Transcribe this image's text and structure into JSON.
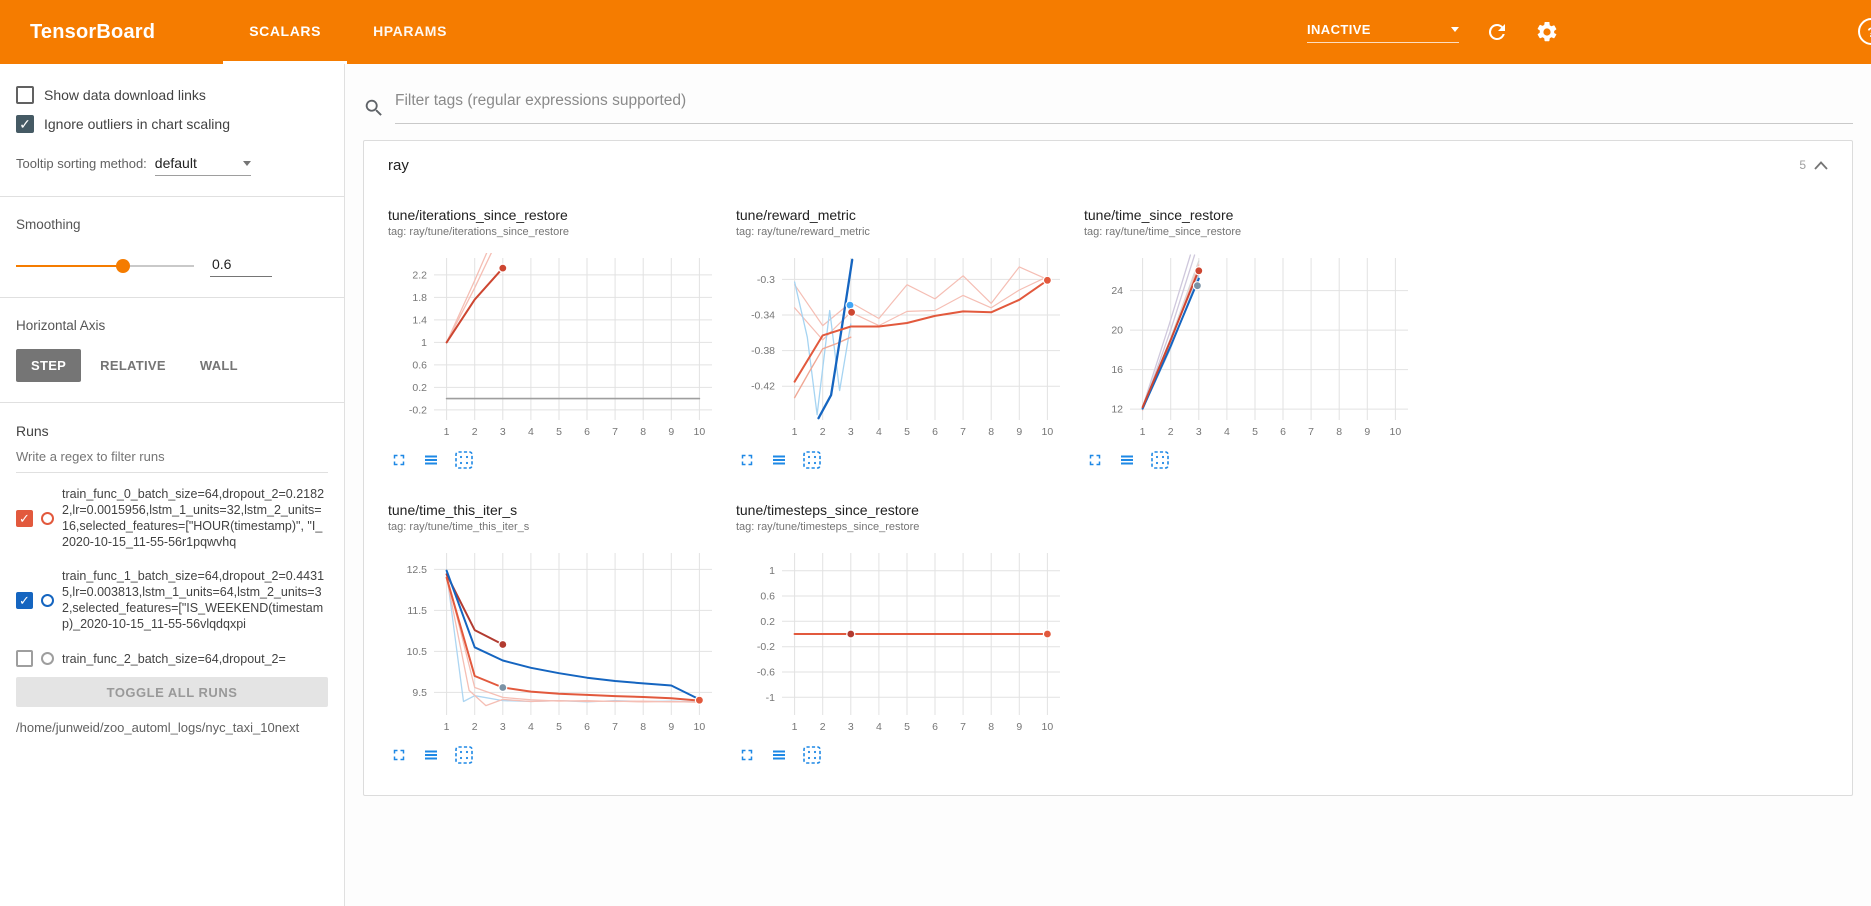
{
  "colors": {
    "header_bg": "#f57c00",
    "accent": "#f57c00",
    "icon_blue": "#1e88e5",
    "checkbox_checked_dark": "#455a64",
    "run_orange": "#e2593d",
    "run_blue": "#1565c0"
  },
  "header": {
    "title": "TensorBoard",
    "tabs": [
      {
        "label": "SCALARS",
        "active": true
      },
      {
        "label": "HPARAMS",
        "active": false
      }
    ],
    "status_select": {
      "value": "INACTIVE"
    }
  },
  "sidebar": {
    "show_download": {
      "label": "Show data download links",
      "checked": false
    },
    "ignore_outliers": {
      "label": "Ignore outliers in chart scaling",
      "checked": true
    },
    "tooltip_sort": {
      "label": "Tooltip sorting method:",
      "value": "default"
    },
    "smoothing": {
      "label": "Smoothing",
      "value": "0.6",
      "percent": 60
    },
    "horizontal_axis": {
      "label": "Horizontal Axis",
      "options": [
        "STEP",
        "RELATIVE",
        "WALL"
      ],
      "selected": "STEP"
    },
    "runs": {
      "label": "Runs",
      "filter_placeholder": "Write a regex to filter runs",
      "items": [
        {
          "label": "train_func_0_batch_size=64,dropout_2=0.21822,lr=0.0015956,lstm_1_units=32,lstm_2_units=16,selected_features=[\"HOUR(timestamp)\", \"I_2020-10-15_11-55-56r1pqwvhq",
          "checked": true,
          "color": "#e2593d"
        },
        {
          "label": "train_func_1_batch_size=64,dropout_2=0.44315,lr=0.003813,lstm_1_units=64,lstm_2_units=32,selected_features=[\"IS_WEEKEND(timestamp)_2020-10-15_11-55-56vlqdqxpi",
          "checked": true,
          "color": "#1565c0"
        },
        {
          "label": "train_func_2_batch_size=64,dropout_2=",
          "checked": false,
          "color": "#9e9e9e"
        }
      ],
      "toggle_all_label": "TOGGLE ALL RUNS",
      "log_path": "/home/junweid/zoo_automl_logs/nyc_taxi_10next"
    }
  },
  "main": {
    "filter_placeholder": "Filter tags (regular expressions supported)",
    "group": {
      "name": "ray",
      "count": "5"
    }
  },
  "chart_data": [
    {
      "name": "iterations_since_restore",
      "type": "line",
      "title": "tune/iterations_since_restore",
      "tag": "tag: ray/tune/iterations_since_restore",
      "xlim": [
        0.55,
        10.45
      ],
      "ylim": [
        -0.38,
        2.5
      ],
      "xticks": [
        1,
        2,
        3,
        4,
        5,
        6,
        7,
        8,
        9,
        10
      ],
      "yticks": [
        [
          -0.2,
          "-0.2"
        ],
        [
          0.2,
          "0.2"
        ],
        [
          0.6,
          "0.6"
        ],
        [
          1,
          "1"
        ],
        [
          1.4,
          "1.4"
        ],
        [
          1.8,
          "1.8"
        ],
        [
          2.2,
          "2.2"
        ]
      ],
      "series": [
        {
          "name": "run0-raw",
          "color": "#f5beb4",
          "width": 1.3,
          "points": [
            [
              1,
              1
            ],
            [
              2,
              2.1
            ],
            [
              2.45,
              2.62
            ]
          ]
        },
        {
          "name": "run2-raw",
          "color": "#f5beb4",
          "width": 1.3,
          "points": [
            [
              1,
              1
            ],
            [
              2,
              1.97
            ],
            [
              2.62,
              2.62
            ]
          ]
        },
        {
          "name": "flat-zero-run",
          "color": "#9e9e9e",
          "width": 1.6,
          "points": [
            [
              1,
              0
            ],
            [
              10,
              0
            ]
          ]
        },
        {
          "name": "run0-smoothed",
          "color": "#cd4631",
          "width": 2,
          "points": [
            [
              1,
              1
            ],
            [
              2,
              1.76
            ],
            [
              3,
              2.32
            ]
          ]
        }
      ],
      "end_dots": [
        {
          "x": 3,
          "y": 2.32,
          "color": "#cd4631"
        }
      ]
    },
    {
      "name": "reward_metric",
      "type": "line",
      "title": "tune/reward_metric",
      "tag": "tag: ray/tune/reward_metric",
      "xlim": [
        0.55,
        10.45
      ],
      "ylim": [
        -0.458,
        -0.276
      ],
      "xticks": [
        1,
        2,
        3,
        4,
        5,
        6,
        7,
        8,
        9,
        10
      ],
      "yticks": [
        [
          -0.42,
          "-0.42"
        ],
        [
          -0.38,
          "-0.38"
        ],
        [
          -0.34,
          "-0.34"
        ],
        [
          -0.3,
          "-0.3"
        ]
      ],
      "series": [
        {
          "name": "faded-raw-a",
          "color": "#f5beb4",
          "width": 1.2,
          "points": [
            [
              1,
              -0.306
            ],
            [
              2,
              -0.352
            ],
            [
              3,
              -0.326
            ],
            [
              4,
              -0.344
            ],
            [
              5,
              -0.306
            ],
            [
              6,
              -0.322
            ],
            [
              7,
              -0.296
            ],
            [
              8,
              -0.327
            ],
            [
              9,
              -0.286
            ],
            [
              10,
              -0.3
            ]
          ]
        },
        {
          "name": "faded-raw-b",
          "color": "#f5beb4",
          "width": 1.2,
          "points": [
            [
              1,
              -0.332
            ],
            [
              2,
              -0.368
            ],
            [
              3,
              -0.337
            ],
            [
              4,
              -0.352
            ],
            [
              5,
              -0.336
            ],
            [
              6,
              -0.335
            ],
            [
              7,
              -0.318
            ],
            [
              8,
              -0.332
            ],
            [
              9,
              -0.312
            ],
            [
              10,
              -0.297
            ]
          ]
        },
        {
          "name": "blue-raw",
          "color": "#a6d4f2",
          "width": 1.3,
          "points": [
            [
              1,
              -0.303
            ],
            [
              1.45,
              -0.365
            ],
            [
              1.8,
              -0.452
            ],
            [
              2.25,
              -0.335
            ],
            [
              2.6,
              -0.425
            ],
            [
              3,
              -0.35
            ]
          ]
        },
        {
          "name": "orange-raw",
          "color": "#f0a794",
          "width": 1.4,
          "points": [
            [
              1,
              -0.433
            ],
            [
              1.5,
              -0.405
            ],
            [
              2,
              -0.378
            ],
            [
              2.5,
              -0.372
            ],
            [
              3,
              -0.365
            ]
          ]
        },
        {
          "name": "blue-smoothed",
          "color": "#1565c0",
          "width": 2.3,
          "points": [
            [
              1.85,
              -0.456
            ],
            [
              2.3,
              -0.43
            ],
            [
              2.65,
              -0.36
            ],
            [
              3.05,
              -0.278
            ]
          ]
        },
        {
          "name": "orange-smoothed",
          "color": "#e2593d",
          "width": 2,
          "points": [
            [
              1,
              -0.415
            ],
            [
              2,
              -0.363
            ],
            [
              3,
              -0.353
            ],
            [
              4,
              -0.353
            ],
            [
              5,
              -0.349
            ],
            [
              6,
              -0.341
            ],
            [
              7,
              -0.336
            ],
            [
              8,
              -0.337
            ],
            [
              9,
              -0.323
            ],
            [
              10,
              -0.301
            ]
          ]
        }
      ],
      "end_dots": [
        {
          "x": 2.97,
          "y": -0.329,
          "color": "#42a5f5"
        },
        {
          "x": 3.03,
          "y": -0.337,
          "color": "#cd4631"
        },
        {
          "x": 10,
          "y": -0.301,
          "color": "#e2593d"
        }
      ]
    },
    {
      "name": "time_since_restore",
      "type": "line",
      "title": "tune/time_since_restore",
      "tag": "tag: ray/tune/time_since_restore",
      "xlim": [
        0.55,
        10.45
      ],
      "ylim": [
        10.9,
        27.3
      ],
      "xticks": [
        1,
        2,
        3,
        4,
        5,
        6,
        7,
        8,
        9,
        10
      ],
      "yticks": [
        [
          12,
          "12"
        ],
        [
          16,
          "16"
        ],
        [
          20,
          "20"
        ],
        [
          24,
          "24"
        ]
      ],
      "series": [
        {
          "name": "faded-lavender-a",
          "color": "#cfc8dc",
          "width": 1.3,
          "points": [
            [
              1,
              12
            ],
            [
              2,
              20
            ],
            [
              2.85,
              27.6
            ]
          ]
        },
        {
          "name": "faded-lavender-b",
          "color": "#cfc8dc",
          "width": 1.3,
          "points": [
            [
              1,
              12.2
            ],
            [
              1.95,
              20.6
            ],
            [
              2.7,
              27.6
            ]
          ]
        },
        {
          "name": "faded-gray",
          "color": "#d8d8d8",
          "width": 1.3,
          "points": [
            [
              1,
              12.1
            ],
            [
              2,
              19.2
            ],
            [
              3,
              27
            ]
          ]
        },
        {
          "name": "faded-pink",
          "color": "#f5beb4",
          "width": 1.3,
          "points": [
            [
              1,
              11.9
            ],
            [
              2,
              18.9
            ],
            [
              3,
              26.6
            ]
          ]
        },
        {
          "name": "faded-blue",
          "color": "#aecbe8",
          "width": 1.4,
          "points": [
            [
              1,
              12
            ],
            [
              2,
              18.2
            ],
            [
              3,
              25.6
            ]
          ]
        },
        {
          "name": "blue-smoothed",
          "color": "#1565c0",
          "width": 2,
          "points": [
            [
              1,
              12.05
            ],
            [
              2,
              18.4
            ],
            [
              3,
              25.2
            ]
          ]
        },
        {
          "name": "red-smoothed",
          "color": "#cd4631",
          "width": 2,
          "points": [
            [
              1,
              12.2
            ],
            [
              2,
              19
            ],
            [
              3,
              26.1
            ]
          ]
        }
      ],
      "end_dots": [
        {
          "x": 3,
          "y": 26,
          "color": "#cd4631"
        },
        {
          "x": 2.95,
          "y": 24.5,
          "color": "#7b93a6"
        }
      ]
    },
    {
      "name": "time_this_iter_s",
      "type": "line",
      "title": "tune/time_this_iter_s",
      "tag": "tag: ray/tune/time_this_iter_s",
      "xlim": [
        0.55,
        10.45
      ],
      "ylim": [
        8.95,
        12.9
      ],
      "xticks": [
        1,
        2,
        3,
        4,
        5,
        6,
        7,
        8,
        9,
        10
      ],
      "yticks": [
        [
          9.5,
          "9.5"
        ],
        [
          10.5,
          "10.5"
        ],
        [
          11.5,
          "11.5"
        ],
        [
          12.5,
          "12.5"
        ]
      ],
      "series": [
        {
          "name": "faded-blue-raw",
          "color": "#aed6f2",
          "width": 1.3,
          "points": [
            [
              1,
              12.42
            ],
            [
              1.6,
              9.28
            ],
            [
              2,
              9.42
            ],
            [
              3,
              9.3
            ],
            [
              4,
              9.28
            ],
            [
              5,
              9.3
            ],
            [
              6,
              9.27
            ],
            [
              7,
              9.3
            ],
            [
              8,
              9.28
            ],
            [
              9,
              9.29
            ],
            [
              10,
              9.27
            ]
          ]
        },
        {
          "name": "faded-pink-raw-a",
          "color": "#f5beb4",
          "width": 1.3,
          "points": [
            [
              1,
              12.3
            ],
            [
              1.8,
              9.55
            ],
            [
              2.4,
              9.18
            ],
            [
              3,
              9.33
            ],
            [
              4,
              9.28
            ],
            [
              5,
              9.3
            ],
            [
              6,
              9.28
            ],
            [
              7,
              9.29
            ],
            [
              8,
              9.27
            ],
            [
              9,
              9.28
            ],
            [
              10,
              9.26
            ]
          ]
        },
        {
          "name": "faded-pink-raw-b",
          "color": "#f5beb4",
          "width": 1.3,
          "points": [
            [
              1,
              12.35
            ],
            [
              2,
              9.62
            ],
            [
              3,
              9.38
            ],
            [
              4,
              9.32
            ],
            [
              5,
              9.29
            ],
            [
              6,
              9.3
            ],
            [
              7,
              9.28
            ],
            [
              8,
              9.29
            ],
            [
              9,
              9.27
            ],
            [
              10,
              9.27
            ]
          ]
        },
        {
          "name": "darkred-smoothed",
          "color": "#b23b30",
          "width": 2,
          "points": [
            [
              1,
              12.38
            ],
            [
              2,
              11.02
            ],
            [
              3,
              10.67
            ]
          ]
        },
        {
          "name": "blue-smoothed",
          "color": "#1565c0",
          "width": 2,
          "points": [
            [
              1,
              12.47
            ],
            [
              2,
              10.6
            ],
            [
              3,
              10.28
            ],
            [
              4,
              10.1
            ],
            [
              5,
              9.97
            ],
            [
              6,
              9.86
            ],
            [
              7,
              9.78
            ],
            [
              8,
              9.72
            ],
            [
              9,
              9.67
            ],
            [
              10,
              9.33
            ]
          ]
        },
        {
          "name": "orange-smoothed",
          "color": "#e2593d",
          "width": 2,
          "points": [
            [
              1,
              12.3
            ],
            [
              2,
              9.9
            ],
            [
              3,
              9.62
            ],
            [
              4,
              9.52
            ],
            [
              5,
              9.47
            ],
            [
              6,
              9.44
            ],
            [
              7,
              9.41
            ],
            [
              8,
              9.39
            ],
            [
              9,
              9.36
            ],
            [
              10,
              9.3
            ]
          ]
        }
      ],
      "end_dots": [
        {
          "x": 3,
          "y": 10.67,
          "color": "#b23b30"
        },
        {
          "x": 3,
          "y": 9.62,
          "color": "#7b93a6"
        },
        {
          "x": 10,
          "y": 9.31,
          "color": "#e2593d"
        }
      ]
    },
    {
      "name": "timesteps_since_restore",
      "type": "line",
      "title": "tune/timesteps_since_restore",
      "tag": "tag: ray/tune/timesteps_since_restore",
      "xlim": [
        0.55,
        10.45
      ],
      "ylim": [
        -1.28,
        1.28
      ],
      "xticks": [
        1,
        2,
        3,
        4,
        5,
        6,
        7,
        8,
        9,
        10
      ],
      "yticks": [
        [
          -1,
          "-1"
        ],
        [
          -0.6,
          "-0.6"
        ],
        [
          -0.2,
          "-0.2"
        ],
        [
          0.2,
          "0.2"
        ],
        [
          0.6,
          "0.6"
        ],
        [
          1,
          "1"
        ]
      ],
      "series": [
        {
          "name": "gray-flat",
          "color": "#9e9e9e",
          "width": 1.6,
          "points": [
            [
              1,
              0
            ],
            [
              10,
              0
            ]
          ]
        },
        {
          "name": "orange-flat",
          "color": "#e2593d",
          "width": 2,
          "points": [
            [
              1,
              0
            ],
            [
              10,
              0
            ]
          ]
        }
      ],
      "end_dots": [
        {
          "x": 3,
          "y": 0,
          "color": "#b23b30"
        },
        {
          "x": 10,
          "y": 0,
          "color": "#e2593d"
        }
      ]
    }
  ]
}
